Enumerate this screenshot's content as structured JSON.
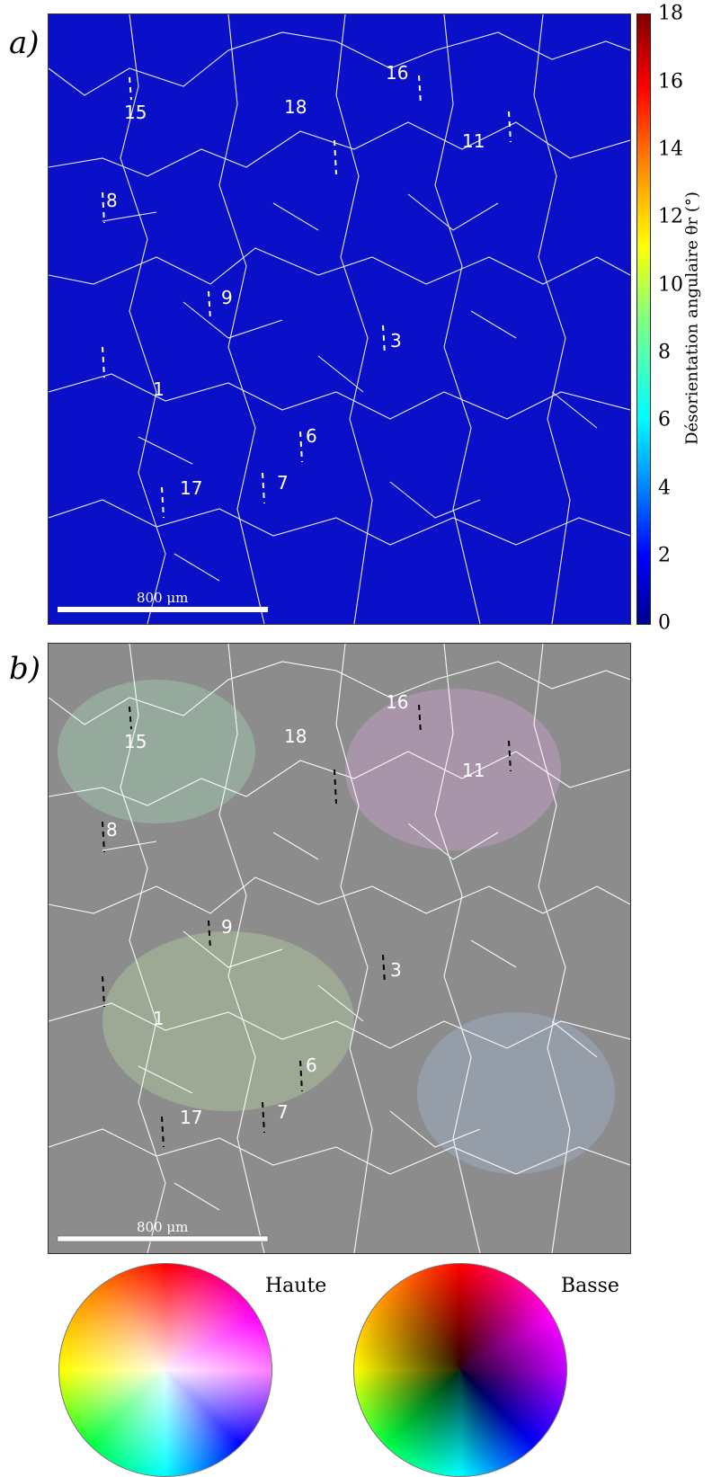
{
  "panel_a": {
    "letter": "a)",
    "grain_labels": [
      "15",
      "18",
      "16",
      "11",
      "8",
      "9",
      "3",
      "1",
      "6",
      "17",
      "7"
    ],
    "scale_bar": "800 μm"
  },
  "panel_b": {
    "letter": "b)",
    "grain_labels": [
      "15",
      "18",
      "16",
      "11",
      "8",
      "9",
      "3",
      "1",
      "6",
      "17",
      "7"
    ],
    "scale_bar": "800 μm"
  },
  "colorbar": {
    "title": "Désorientation angulaire θr (°)",
    "ticks": [
      "0",
      "2",
      "4",
      "6",
      "8",
      "10",
      "12",
      "14",
      "16",
      "18"
    ],
    "range": [
      0,
      18
    ]
  },
  "legend": {
    "high_label": "Haute",
    "low_label": "Basse"
  },
  "colors": {
    "map_a_background": "#0a10c8",
    "map_b_background": "#8c8c8c",
    "grain_boundaries": "#ffffff"
  }
}
